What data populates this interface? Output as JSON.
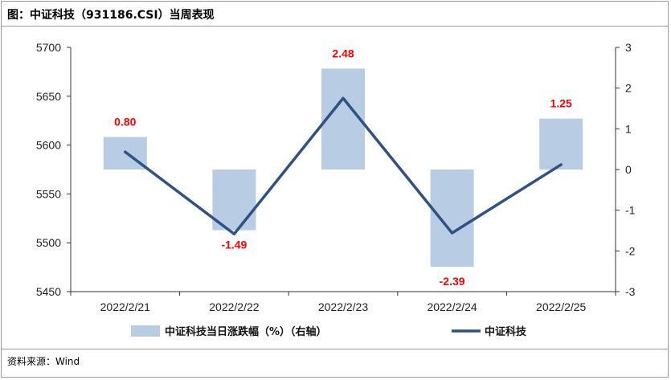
{
  "header": {
    "title": "图：中证科技（931186.CSI）当周表现"
  },
  "footer": {
    "source": "资料来源：Wind"
  },
  "colors": {
    "bar": "#b8cce4",
    "line": "#2e5283",
    "label": "#ff0000",
    "axis": "#333333"
  },
  "chart_data": {
    "type": "bar+line",
    "title": "",
    "categories": [
      "2022/2/21",
      "2022/2/22",
      "2022/2/23",
      "2022/2/24",
      "2022/2/25"
    ],
    "series": [
      {
        "name": "中证科技当日涨跌幅（%）（右轴）",
        "type": "bar",
        "axis": "right",
        "values": [
          0.8,
          -1.49,
          2.48,
          -2.39,
          1.25
        ],
        "labels": [
          "0.80",
          "-1.49",
          "2.48",
          "-2.39",
          "1.25"
        ]
      },
      {
        "name": "中证科技",
        "type": "line",
        "axis": "left",
        "values": [
          5593,
          5509,
          5648,
          5510,
          5580
        ]
      }
    ],
    "left_axis": {
      "min": 5450,
      "max": 5700,
      "ticks": [
        5700,
        5650,
        5600,
        5550,
        5500,
        5450
      ]
    },
    "right_axis": {
      "min": -3,
      "max": 3,
      "ticks": [
        3,
        2,
        1,
        0,
        -1,
        -2,
        -3
      ]
    },
    "grid": false,
    "legend_position": "bottom"
  }
}
